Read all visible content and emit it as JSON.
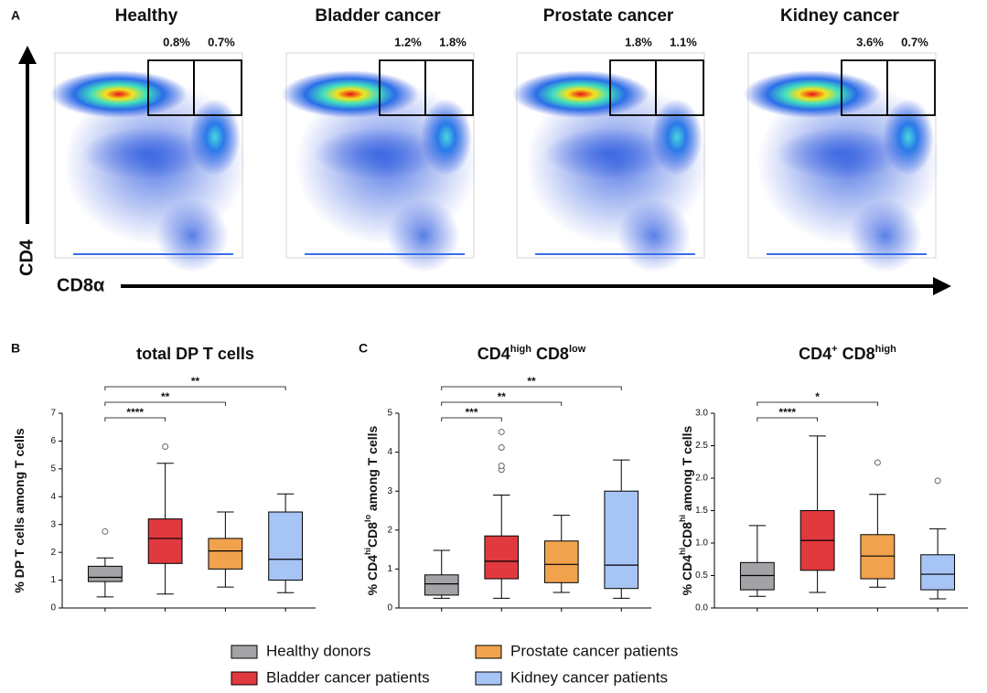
{
  "panel_labels": [
    "A",
    "B",
    "C"
  ],
  "flow": {
    "y_label": "CD4",
    "x_label": "CD8α",
    "panels": [
      {
        "title": "Healthy",
        "gates": [
          "0.8%",
          "0.7%"
        ]
      },
      {
        "title": "Bladder cancer",
        "gates": [
          "1.2%",
          "1.8%"
        ]
      },
      {
        "title": "Prostate cancer",
        "gates": [
          "1.8%",
          "1.1%"
        ]
      },
      {
        "title": "Kidney cancer",
        "gates": [
          "3.6%",
          "0.7%"
        ]
      }
    ]
  },
  "groups": [
    {
      "name": "Healthy donors",
      "color": "#a3a3a7"
    },
    {
      "name": "Bladder cancer patients",
      "color": "#e0393e"
    },
    {
      "name": "Prostate cancer patients",
      "color": "#f1a24d"
    },
    {
      "name": "Kidney cancer patients",
      "color": "#a6c4f4"
    }
  ],
  "chart_data": [
    {
      "type": "box",
      "title": [
        "total DP T cells"
      ],
      "y_label": [
        "% DP T cells among T cells"
      ],
      "ylim": [
        0,
        7
      ],
      "yticks": [
        0,
        1,
        2,
        3,
        4,
        5,
        6,
        7
      ],
      "boxes": [
        {
          "min": 0.4,
          "q1": 0.95,
          "median": 1.1,
          "q3": 1.5,
          "max": 1.8,
          "outliers": [
            2.75
          ]
        },
        {
          "min": 0.5,
          "q1": 1.6,
          "median": 2.5,
          "q3": 3.2,
          "max": 5.2,
          "outliers": [
            5.8
          ]
        },
        {
          "min": 0.75,
          "q1": 1.4,
          "median": 2.05,
          "q3": 2.5,
          "max": 3.45,
          "outliers": []
        },
        {
          "min": 0.55,
          "q1": 1.0,
          "median": 1.75,
          "q3": 3.45,
          "max": 4.1,
          "outliers": []
        }
      ],
      "comparisons": [
        "****",
        "**",
        "**"
      ]
    },
    {
      "type": "box",
      "title": [
        "CD4",
        "high",
        " CD8",
        "low"
      ],
      "y_label": [
        "% CD4",
        "hi",
        "CD8",
        "lo",
        " among T cells"
      ],
      "ylim": [
        0,
        5
      ],
      "yticks": [
        0,
        1,
        2,
        3,
        4,
        5
      ],
      "boxes": [
        {
          "min": 0.25,
          "q1": 0.33,
          "median": 0.62,
          "q3": 0.85,
          "max": 1.48,
          "outliers": []
        },
        {
          "min": 0.25,
          "q1": 0.75,
          "median": 1.2,
          "q3": 1.85,
          "max": 2.9,
          "outliers": [
            3.55,
            3.65,
            4.12,
            4.52
          ]
        },
        {
          "min": 0.4,
          "q1": 0.65,
          "median": 1.12,
          "q3": 1.72,
          "max": 2.38,
          "outliers": []
        },
        {
          "min": 0.25,
          "q1": 0.5,
          "median": 1.1,
          "q3": 3.0,
          "max": 3.8,
          "outliers": []
        }
      ],
      "comparisons": [
        "***",
        "**",
        "**"
      ]
    },
    {
      "type": "box",
      "title": [
        "CD4",
        "+",
        " CD8",
        "high"
      ],
      "y_label": [
        "% CD4",
        "hi",
        "CD8",
        "hi",
        " among T cells"
      ],
      "ylim": [
        0,
        3
      ],
      "yticks": [
        {
          "value": 0,
          "label": "0.0"
        },
        0.5,
        {
          "value": 1,
          "label": "1.0"
        },
        1.5,
        {
          "value": 2,
          "label": "2.0"
        },
        2.5,
        {
          "value": 3,
          "label": "3.0"
        }
      ],
      "boxes": [
        {
          "min": 0.18,
          "q1": 0.28,
          "median": 0.5,
          "q3": 0.7,
          "max": 1.27,
          "outliers": []
        },
        {
          "min": 0.24,
          "q1": 0.58,
          "median": 1.04,
          "q3": 1.5,
          "max": 2.65,
          "outliers": []
        },
        {
          "min": 0.32,
          "q1": 0.45,
          "median": 0.8,
          "q3": 1.13,
          "max": 1.75,
          "outliers": [
            2.24
          ]
        },
        {
          "min": 0.14,
          "q1": 0.28,
          "median": 0.52,
          "q3": 0.82,
          "max": 1.22,
          "outliers": [
            1.96
          ]
        }
      ],
      "comparisons": [
        "****",
        "*"
      ]
    }
  ]
}
